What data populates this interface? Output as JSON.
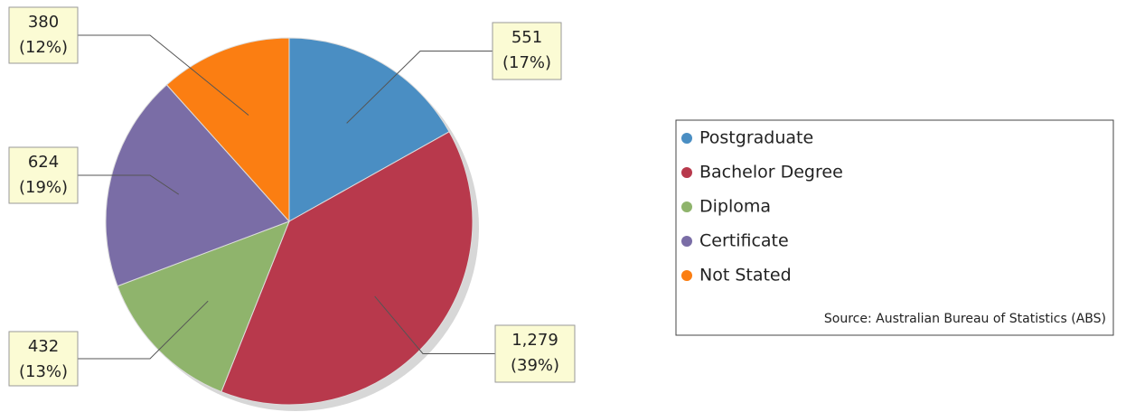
{
  "chart_data": {
    "type": "pie",
    "categories": [
      "Postgraduate",
      "Bachelor Degree",
      "Diploma",
      "Certificate",
      "Not Stated"
    ],
    "values": [
      551,
      1279,
      432,
      624,
      380
    ],
    "value_labels": [
      "551",
      "1,279",
      "432",
      "624",
      "380"
    ],
    "percentages": [
      17,
      39,
      13,
      19,
      12
    ],
    "percentage_labels": [
      "(17%)",
      "(39%)",
      "(13%)",
      "(19%)",
      "(12%)"
    ],
    "colors": [
      "#4a8ec3",
      "#b8394c",
      "#8fb46c",
      "#7a6da6",
      "#fb7e12"
    ],
    "source": "Source: Australian Bureau of Statistics (ABS)",
    "legend": "right"
  }
}
